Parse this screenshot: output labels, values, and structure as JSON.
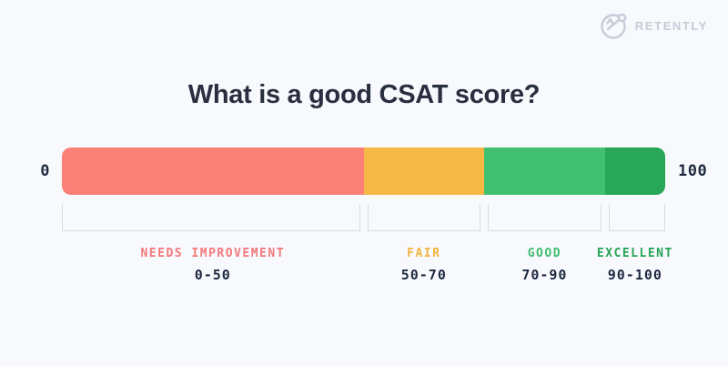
{
  "brand": {
    "name": "RETENTLY",
    "logo_icon": "retently-pen-circle-icon",
    "logo_color": "#C5CBD8"
  },
  "title": "What is a good CSAT score?",
  "colors": {
    "background": "#F8F9FC",
    "title_text": "#2A2F40",
    "number_text": "#1E2940",
    "bracket_border": "#D6DBE5"
  },
  "chart_data": {
    "type": "bar",
    "variant": "horizontal-score-scale",
    "title": "What is a good CSAT score?",
    "xlabel": "",
    "ylabel": "",
    "grid": false,
    "legend_position": "below",
    "axis": {
      "min_label": "0",
      "max_label": "100",
      "range": [
        0,
        100
      ]
    },
    "segments": [
      {
        "label": "NEEDS IMPROVEMENT",
        "range_label": "0-50",
        "start": 0,
        "end": 50,
        "bar_color": "#FB8178",
        "label_color": "#F2797B"
      },
      {
        "label": "FAIR",
        "range_label": "50-70",
        "start": 50,
        "end": 70,
        "bar_color": "#F6B845",
        "label_color": "#F0B43E"
      },
      {
        "label": "GOOD",
        "range_label": "70-90",
        "start": 70,
        "end": 90,
        "bar_color": "#42C072",
        "label_color": "#3EBD6E"
      },
      {
        "label": "EXCELLENT",
        "range_label": "90-100",
        "start": 90,
        "end": 100,
        "bar_color": "#27A757",
        "label_color": "#27A455"
      }
    ]
  }
}
